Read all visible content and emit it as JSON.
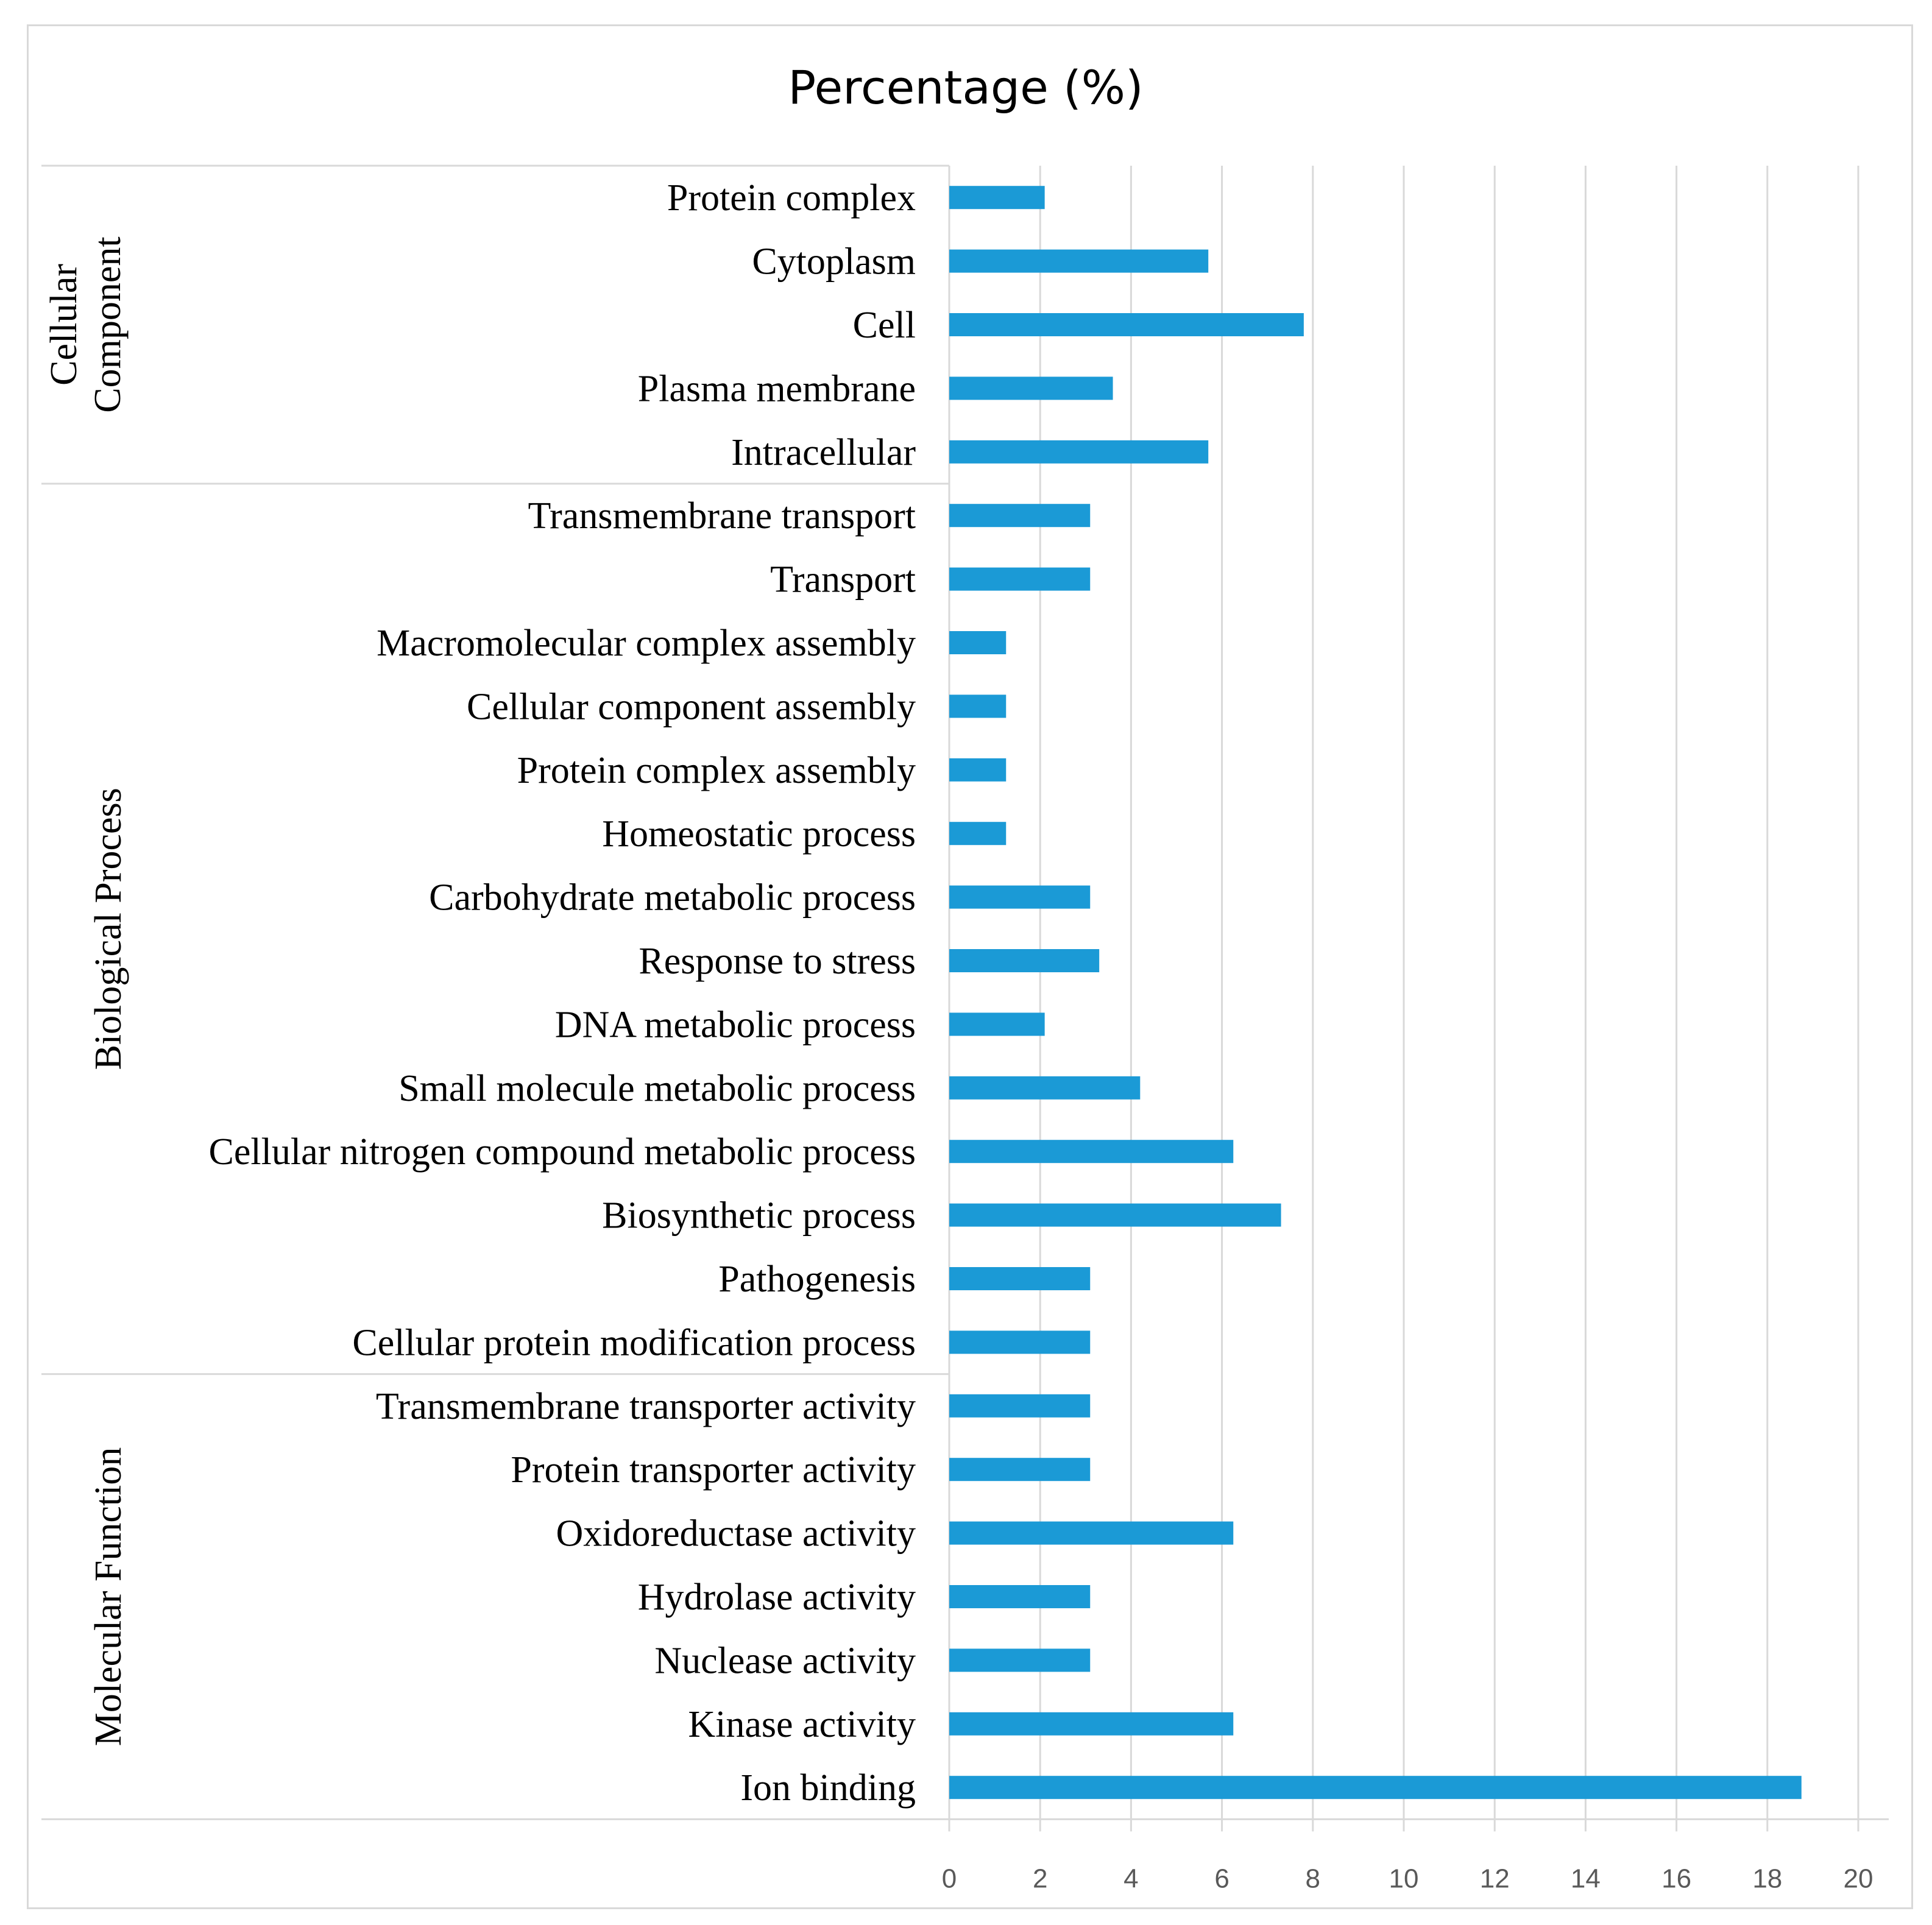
{
  "chart_data": {
    "type": "bar",
    "orientation": "horizontal",
    "title": "Percentage (%)",
    "xlabel": "",
    "ylabel": "",
    "xlim": [
      0,
      20
    ],
    "x_ticks": [
      "0",
      "2",
      "4",
      "6",
      "8",
      "10",
      "12",
      "14",
      "16",
      "18",
      "20"
    ],
    "grid": true,
    "bar_color": "#1b9ad6",
    "groups": [
      {
        "name": "Cellular Component",
        "name_lines": [
          "Cellular",
          "Component"
        ],
        "categories": [
          "Protein complex",
          "Cytoplasm",
          "Cell",
          "Plasma membrane",
          "Intracellular"
        ],
        "values": [
          2.1,
          5.7,
          7.8,
          3.6,
          5.7
        ]
      },
      {
        "name": "Biological Process",
        "name_lines": [
          "Biological Process"
        ],
        "categories": [
          "Transmembrane transport",
          "Transport",
          "Macromolecular complex assembly",
          "Cellular component assembly",
          "Protein complex assembly",
          "Homeostatic process",
          "Carbohydrate metabolic process",
          "Response to stress",
          "DNA metabolic process",
          "Small molecule metabolic process",
          "Cellular nitrogen compound metabolic process",
          "Biosynthetic process",
          "Pathogenesis",
          "Cellular protein modification process"
        ],
        "values": [
          3.1,
          3.1,
          1.25,
          1.25,
          1.25,
          1.25,
          3.1,
          3.3,
          2.1,
          4.2,
          6.25,
          7.3,
          3.1,
          3.1
        ]
      },
      {
        "name": "Molecular Function",
        "name_lines": [
          "Molecular Function"
        ],
        "categories": [
          "Transmembrane transporter activity",
          "Protein transporter activity",
          "Oxidoreductase activity",
          "Hydrolase activity",
          "Nuclease activity",
          "Kinase activity",
          "Ion binding"
        ],
        "values": [
          3.1,
          3.1,
          6.25,
          3.1,
          3.1,
          6.25,
          18.75
        ]
      }
    ]
  }
}
